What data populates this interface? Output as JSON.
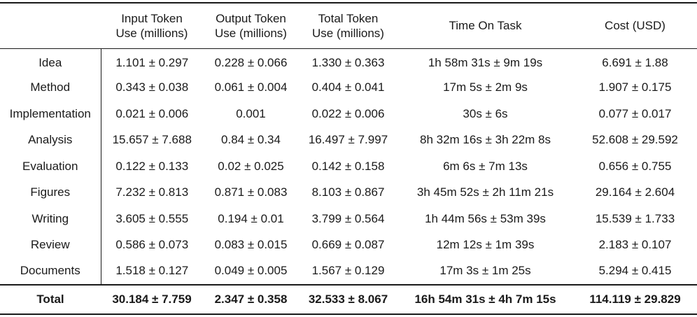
{
  "columns": [
    "",
    "Input Token\nUse (millions)",
    "Output Token\nUse (millions)",
    "Total Token\nUse (millions)",
    "Time On Task",
    "Cost (USD)"
  ],
  "rows": [
    [
      "Idea",
      "1.101 ± 0.297",
      "0.228 ± 0.066",
      "1.330 ± 0.363",
      "1h 58m 31s ± 9m 19s",
      "6.691 ± 1.88"
    ],
    [
      "Method",
      "0.343 ± 0.038",
      "0.061  ± 0.004",
      "0.404 ± 0.041",
      "17m 5s ± 2m 9s",
      "1.907 ± 0.175"
    ],
    [
      "Implementation",
      "0.021 ± 0.006",
      "0.001",
      "0.022 ± 0.006",
      "30s ± 6s",
      "0.077 ± 0.017"
    ],
    [
      "Analysis",
      "15.657 ± 7.688",
      "0.84 ± 0.34",
      "16.497 ± 7.997",
      "8h 32m 16s ± 3h 22m 8s",
      "52.608 ± 29.592"
    ],
    [
      "Evaluation",
      "0.122 ± 0.133",
      "0.02 ± 0.025",
      "0.142 ± 0.158",
      "6m 6s ± 7m 13s",
      "0.656 ± 0.755"
    ],
    [
      "Figures",
      "7.232 ± 0.813",
      "0.871 ± 0.083",
      "8.103 ± 0.867",
      "3h 45m 52s ± 2h 11m 21s",
      "29.164 ± 2.604"
    ],
    [
      "Writing",
      "3.605 ± 0.555",
      "0.194 ± 0.01",
      "3.799 ± 0.564",
      "1h 44m 56s ± 53m 39s",
      "15.539 ± 1.733"
    ],
    [
      "Review",
      "0.586 ± 0.073",
      "0.083 ± 0.015",
      "0.669 ± 0.087",
      "12m 12s ± 1m 39s",
      "2.183 ± 0.107"
    ],
    [
      "Documents",
      "1.518 ± 0.127",
      "0.049 ± 0.005",
      "1.567 ± 0.129",
      "17m 3s ± 1m 25s",
      "5.294 ± 0.415"
    ]
  ],
  "total": [
    "Total",
    "30.184 ± 7.759",
    "2.347 ± 0.358",
    "32.533 ± 8.067",
    "16h 54m 31s ± 4h 7m 15s",
    "114.119 ± 29.829"
  ]
}
